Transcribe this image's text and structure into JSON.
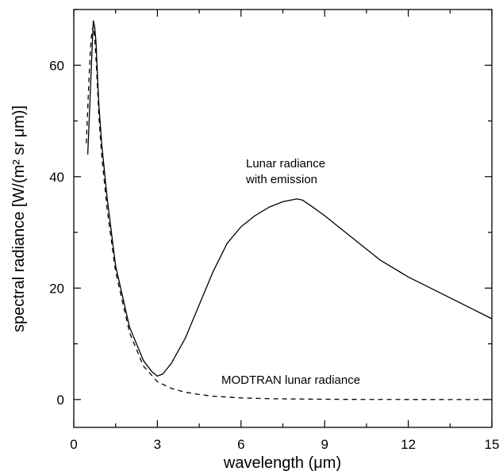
{
  "chart_data": {
    "type": "line",
    "title": "",
    "xlabel": "wavelength (μm)",
    "ylabel": "spectral radiance [W/(m² sr μm)]",
    "xlim": [
      0,
      15
    ],
    "ylim": [
      -5,
      70
    ],
    "x_ticks": [
      "0",
      "3",
      "6",
      "9",
      "12",
      "15"
    ],
    "y_ticks": [
      "0",
      "20",
      "40",
      "60"
    ],
    "grid": false,
    "legend": "none",
    "annotations": {
      "emission_line1": "Lunar radiance",
      "emission_line2": "with emission",
      "modtran": "MODTRAN lunar radiance"
    },
    "series": [
      {
        "style": "solid",
        "x": [
          0.5,
          0.6,
          0.65,
          0.7,
          0.75,
          0.8,
          0.85,
          0.9,
          1.0,
          1.2,
          1.5,
          2.0,
          2.5,
          2.8,
          3.0,
          3.2,
          3.5,
          4.0,
          4.5,
          5.0,
          5.5,
          6.0,
          6.5,
          7.0,
          7.5,
          8.0,
          8.2,
          8.5,
          9.0,
          10.0,
          11.0,
          12.0,
          13.0,
          14.0,
          15.0
        ],
        "y": [
          44,
          56,
          62,
          68,
          67,
          64,
          58,
          53,
          46,
          36,
          24,
          13,
          7,
          5,
          4.2,
          4.6,
          6.5,
          11,
          17,
          23,
          28,
          31,
          33,
          34.5,
          35.5,
          36,
          35.8,
          34.8,
          33,
          29,
          25,
          22,
          19.5,
          17,
          14.5
        ]
      },
      {
        "style": "dashed",
        "x": [
          0.45,
          0.55,
          0.6,
          0.65,
          0.7,
          0.75,
          0.8,
          0.85,
          0.9,
          1.0,
          1.2,
          1.5,
          2.0,
          2.5,
          3.0,
          3.5,
          4.0,
          4.5,
          5.0,
          6.0,
          7.0,
          8.0,
          9.0,
          10.0,
          12.0,
          15.0
        ],
        "y": [
          46,
          58,
          63,
          66,
          67,
          65,
          61,
          56,
          51,
          44,
          34,
          23,
          12,
          6,
          3.2,
          2,
          1.3,
          0.9,
          0.6,
          0.3,
          0.15,
          0.1,
          0.05,
          0.02,
          0.01,
          0
        ]
      }
    ]
  }
}
